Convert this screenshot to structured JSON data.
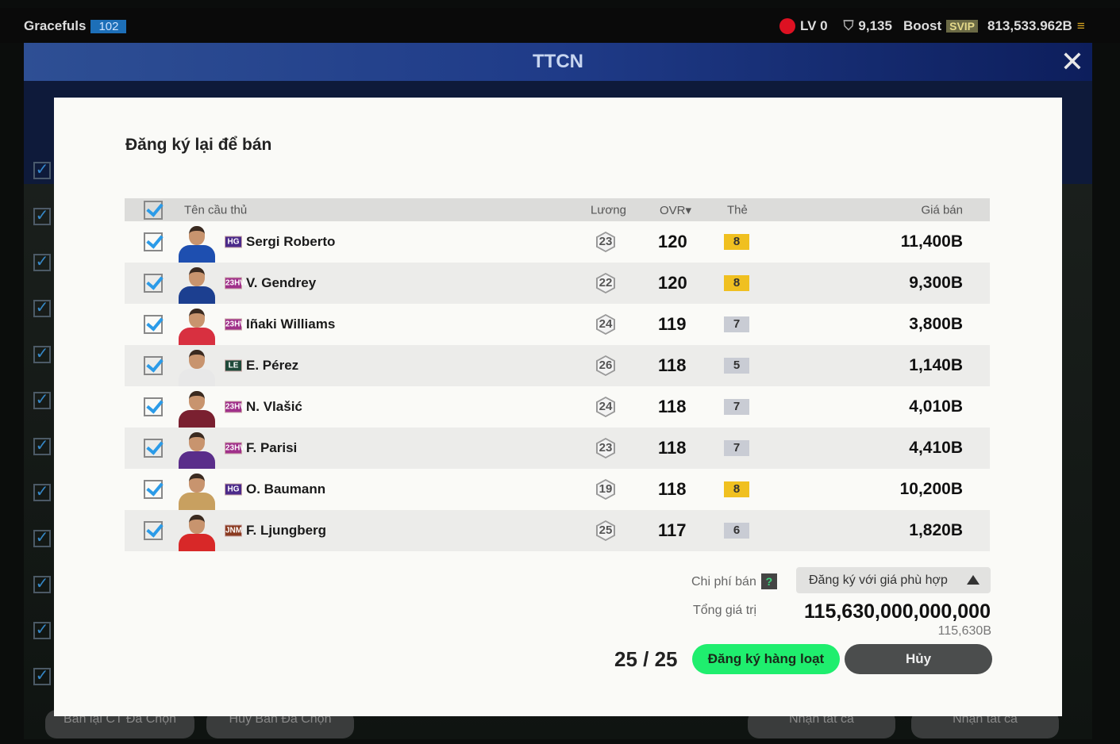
{
  "topbar": {
    "username": "Gracefuls",
    "level": "102",
    "lv": "LV 0",
    "points": "9,135",
    "boost": "Boost",
    "svip": "SVIP",
    "balance": "813,533.962B"
  },
  "header": {
    "title": "TTCN"
  },
  "background": {
    "buttons": [
      "Bán lại CT Đã Chọn",
      "Hủy Bán Đã Chọn",
      "Nhận tất cả",
      "Nhận tất cả"
    ]
  },
  "modal": {
    "title": "Đăng ký lại để bán",
    "columns": {
      "name": "Tên cầu thủ",
      "salary": "Lương",
      "ovr": "OVR▾",
      "grade": "Thẻ",
      "price": "Giá bán"
    },
    "rows": [
      {
        "tag": "HG",
        "tag_color": "#4b2a8a",
        "name": "Sergi Roberto",
        "salary": "23",
        "ovr": "120",
        "grade": "8",
        "price": "11,400B",
        "kit": "#1e4fb0"
      },
      {
        "tag": "23HW",
        "tag_color": "#a0308a",
        "name": "V. Gendrey",
        "salary": "22",
        "ovr": "120",
        "grade": "8",
        "price": "9,300B",
        "kit": "#1c3f90"
      },
      {
        "tag": "23HW",
        "tag_color": "#a0308a",
        "name": "Iñaki Williams",
        "salary": "24",
        "ovr": "119",
        "grade": "7",
        "price": "3,800B",
        "kit": "#d83040"
      },
      {
        "tag": "LE",
        "tag_color": "#1f4a3a",
        "name": "E. Pérez",
        "salary": "26",
        "ovr": "118",
        "grade": "5",
        "price": "1,140B",
        "kit": "#e8e8e8"
      },
      {
        "tag": "23HW",
        "tag_color": "#a0308a",
        "name": "N. Vlašić",
        "salary": "24",
        "ovr": "118",
        "grade": "7",
        "price": "4,010B",
        "kit": "#7a2030"
      },
      {
        "tag": "23HW",
        "tag_color": "#a0308a",
        "name": "F. Parisi",
        "salary": "23",
        "ovr": "118",
        "grade": "7",
        "price": "4,410B",
        "kit": "#5a2d8a"
      },
      {
        "tag": "HG",
        "tag_color": "#4b2a8a",
        "name": "O. Baumann",
        "salary": "19",
        "ovr": "118",
        "grade": "8",
        "price": "10,200B",
        "kit": "#c8a060"
      },
      {
        "tag": "JNM",
        "tag_color": "#8a3a20",
        "name": "F. Ljungberg",
        "salary": "25",
        "ovr": "117",
        "grade": "6",
        "price": "1,820B",
        "kit": "#d82828"
      }
    ],
    "fee_label": "Chi phí bán",
    "fee_help": "?",
    "dropdown": "Đăng ký với giá phù hợp",
    "total_label": "Tổng giá trị",
    "total": "115,630,000,000,000",
    "total_short": "115,630B",
    "count": "25 / 25",
    "register_button": "Đăng ký hàng loạt",
    "cancel_button": "Hủy"
  },
  "colors": {
    "grade_gold": "#f0c020",
    "grade_silver": "#c9ccd4",
    "accent_green": "#1fee6e",
    "check_blue": "#2b9be8"
  }
}
